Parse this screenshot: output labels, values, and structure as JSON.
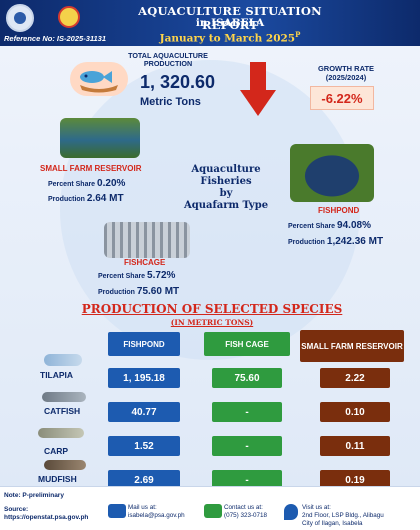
{
  "header": {
    "title_line1": "AQUACULTURE SITUATION REPORT",
    "title_line2": "in ISABELA",
    "period": "January to March 2025",
    "period_sup": "P",
    "reference": "Reference No: IS-2025-31131"
  },
  "summary": {
    "total_label": "TOTAL AQUACULTURE PRODUCTION",
    "total_value": "1, 320.60",
    "total_unit": "Metric Tons",
    "growth_label_1": "GROWTH RATE",
    "growth_label_2": "(2025/2024)",
    "growth_value": "-6.22%",
    "arrow_color": "#d3271b"
  },
  "center_title": [
    "Aquaculture",
    "Fisheries",
    "by",
    "Aquafarm Type"
  ],
  "farm_types": {
    "reservoir": {
      "name": "SMALL FARM RESERVOIR",
      "share_label": "Percent Share",
      "share": "0.20%",
      "prod_label": "Production",
      "production": "2.64 MT"
    },
    "fishpond": {
      "name": "FISHPOND",
      "share_label": "Percent Share",
      "share": "94.08%",
      "prod_label": "Production",
      "production": "1,242.36 MT"
    },
    "fishcage": {
      "name": "FISHCAGE",
      "share_label": "Percent Share",
      "share": "5.72%",
      "prod_label": "Production",
      "production": "75.60 MT"
    }
  },
  "species_section": {
    "title": "PRODUCTION OF SELECTED SPECIES",
    "subtitle": "(IN METRIC TONS)",
    "columns": [
      "FISHPOND",
      "FISH CAGE",
      "SMALL FARM RESERVOIR"
    ],
    "rows": [
      {
        "species": "TILAPIA",
        "fishpond": "1, 195.18",
        "fishcage": "75.60",
        "reservoir": "2.22"
      },
      {
        "species": "CATFISH",
        "fishpond": "40.77",
        "fishcage": "-",
        "reservoir": "0.10"
      },
      {
        "species": "CARP",
        "fishpond": "1.52",
        "fishcage": "-",
        "reservoir": "0.11"
      },
      {
        "species": "MUDFISH",
        "fishpond": "2.69",
        "fishcage": "-",
        "reservoir": "0.19"
      }
    ]
  },
  "footer": {
    "note": "Note: P-preliminary",
    "source_label": "Source:",
    "source_url": "https://openstat.psa.gov.ph",
    "mail_label": "Mail us at:",
    "mail_value": "isabela@psa.gov.ph",
    "contact_label": "Contact us at:",
    "contact_value": "(075) 323-0718",
    "visit_label": "Visit us at:",
    "visit_value_1": "2nd Floor, LSP Bldg., Alibagu",
    "visit_value_2": "City of Ilagan, Isabela"
  }
}
